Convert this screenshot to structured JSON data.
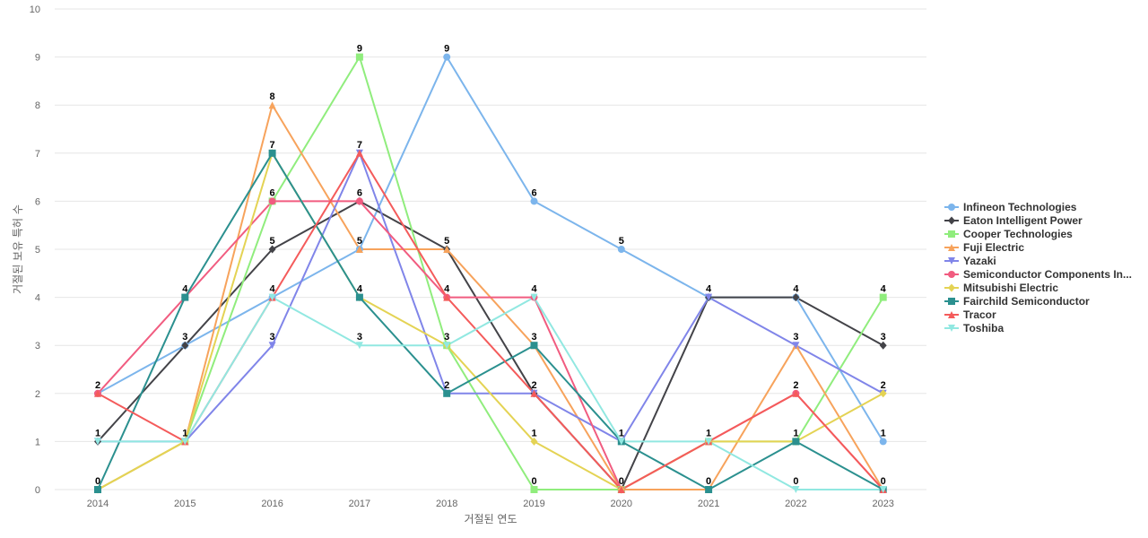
{
  "chart_data": {
    "type": "line",
    "title": "",
    "xlabel": "거절된 연도",
    "ylabel": "거절된 보유 특허 수",
    "ylim": [
      0,
      10
    ],
    "y_ticks": [
      0,
      1,
      2,
      3,
      4,
      5,
      6,
      7,
      8,
      9,
      10
    ],
    "categories": [
      "2014",
      "2015",
      "2016",
      "2017",
      "2018",
      "2019",
      "2020",
      "2021",
      "2022",
      "2023"
    ],
    "legend_position": "right",
    "series": [
      {
        "name": "Infineon Technologies",
        "legend_label": "Infineon Technologies",
        "color": "#7cb5ec",
        "marker": "circle",
        "values": [
          2,
          3,
          4,
          5,
          9,
          6,
          5,
          4,
          4,
          1
        ]
      },
      {
        "name": "Eaton Intelligent Power",
        "legend_label": "Eaton Intelligent Power",
        "color": "#434348",
        "marker": "diamond",
        "values": [
          1,
          3,
          5,
          6,
          5,
          2,
          0,
          4,
          4,
          3
        ]
      },
      {
        "name": "Cooper Technologies",
        "legend_label": "Cooper Technologies",
        "color": "#90ed7d",
        "marker": "square",
        "values": [
          0,
          1,
          6,
          9,
          3,
          0,
          0,
          1,
          1,
          4
        ]
      },
      {
        "name": "Fuji Electric",
        "legend_label": "Fuji Electric",
        "color": "#f7a35c",
        "marker": "triangle",
        "values": [
          0,
          1,
          8,
          5,
          5,
          3,
          0,
          0,
          3,
          0
        ]
      },
      {
        "name": "Yazaki",
        "legend_label": "Yazaki",
        "color": "#8085e9",
        "marker": "triangle-down",
        "values": [
          1,
          1,
          3,
          7,
          2,
          2,
          1,
          4,
          3,
          2
        ]
      },
      {
        "name": "Semiconductor Components Industries",
        "legend_label": "Semiconductor Components In...",
        "color": "#f15c80",
        "marker": "circle",
        "values": [
          2,
          4,
          6,
          6,
          4,
          4,
          0,
          1,
          2,
          0
        ]
      },
      {
        "name": "Mitsubishi Electric",
        "legend_label": "Mitsubishi Electric",
        "color": "#e4d354",
        "marker": "diamond",
        "values": [
          0,
          1,
          7,
          4,
          3,
          1,
          0,
          1,
          1,
          2
        ]
      },
      {
        "name": "Fairchild Semiconductor",
        "legend_label": "Fairchild Semiconductor",
        "color": "#2b908f",
        "marker": "square",
        "values": [
          0,
          4,
          7,
          4,
          2,
          3,
          1,
          0,
          1,
          0
        ]
      },
      {
        "name": "Tracor",
        "legend_label": "Tracor",
        "color": "#f45b5b",
        "marker": "triangle",
        "values": [
          2,
          1,
          4,
          7,
          4,
          2,
          0,
          1,
          2,
          0
        ]
      },
      {
        "name": "Toshiba",
        "legend_label": "Toshiba",
        "color": "#91e8e1",
        "marker": "triangle-down",
        "values": [
          1,
          1,
          4,
          3,
          3,
          4,
          1,
          1,
          0,
          0
        ]
      }
    ],
    "data_labels": [
      {
        "category": "2014",
        "value": 2,
        "text": "2"
      },
      {
        "category": "2014",
        "value": 1,
        "text": "1"
      },
      {
        "category": "2014",
        "value": 0,
        "text": "0"
      },
      {
        "category": "2015",
        "value": 4,
        "text": "4"
      },
      {
        "category": "2015",
        "value": 3,
        "text": "3"
      },
      {
        "category": "2015",
        "value": 1,
        "text": "1"
      },
      {
        "category": "2016",
        "value": 8,
        "text": "8"
      },
      {
        "category": "2016",
        "value": 7,
        "text": "7"
      },
      {
        "category": "2016",
        "value": 6,
        "text": "6"
      },
      {
        "category": "2016",
        "value": 5,
        "text": "5"
      },
      {
        "category": "2016",
        "value": 4,
        "text": "4"
      },
      {
        "category": "2016",
        "value": 3,
        "text": "3"
      },
      {
        "category": "2017",
        "value": 9,
        "text": "9"
      },
      {
        "category": "2017",
        "value": 7,
        "text": "7"
      },
      {
        "category": "2017",
        "value": 6,
        "text": "6"
      },
      {
        "category": "2017",
        "value": 5,
        "text": "5"
      },
      {
        "category": "2017",
        "value": 4,
        "text": "4"
      },
      {
        "category": "2017",
        "value": 3,
        "text": "3"
      },
      {
        "category": "2018",
        "value": 9,
        "text": "9"
      },
      {
        "category": "2018",
        "value": 5,
        "text": "5"
      },
      {
        "category": "2018",
        "value": 4,
        "text": "4"
      },
      {
        "category": "2018",
        "value": 3,
        "text": "3"
      },
      {
        "category": "2018",
        "value": 2,
        "text": "2"
      },
      {
        "category": "2019",
        "value": 6,
        "text": "6"
      },
      {
        "category": "2019",
        "value": 4,
        "text": "4"
      },
      {
        "category": "2019",
        "value": 3,
        "text": "3"
      },
      {
        "category": "2019",
        "value": 2,
        "text": "2"
      },
      {
        "category": "2019",
        "value": 1,
        "text": "1"
      },
      {
        "category": "2019",
        "value": 0,
        "text": "0"
      },
      {
        "category": "2020",
        "value": 5,
        "text": "5"
      },
      {
        "category": "2020",
        "value": 1,
        "text": "1"
      },
      {
        "category": "2020",
        "value": 0,
        "text": "0"
      },
      {
        "category": "2021",
        "value": 4,
        "text": "4"
      },
      {
        "category": "2021",
        "value": 1,
        "text": "1"
      },
      {
        "category": "2021",
        "value": 0,
        "text": "0"
      },
      {
        "category": "2022",
        "value": 4,
        "text": "4"
      },
      {
        "category": "2022",
        "value": 3,
        "text": "3"
      },
      {
        "category": "2022",
        "value": 2,
        "text": "2"
      },
      {
        "category": "2022",
        "value": 1,
        "text": "1"
      },
      {
        "category": "2022",
        "value": 0,
        "text": "0"
      },
      {
        "category": "2023",
        "value": 4,
        "text": "4"
      },
      {
        "category": "2023",
        "value": 3,
        "text": "3"
      },
      {
        "category": "2023",
        "value": 2,
        "text": "2"
      },
      {
        "category": "2023",
        "value": 1,
        "text": "1"
      },
      {
        "category": "2023",
        "value": 0,
        "text": "0"
      }
    ]
  }
}
